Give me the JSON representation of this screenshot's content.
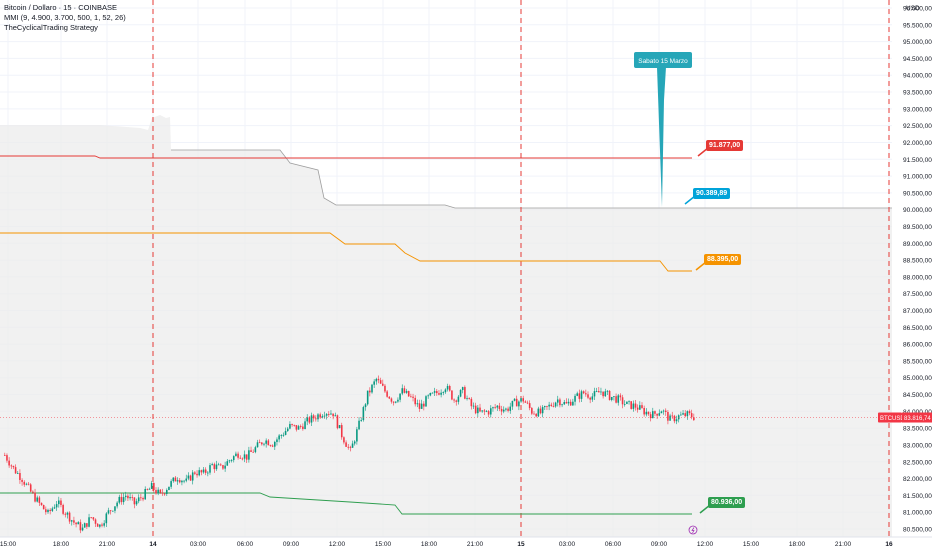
{
  "header": {
    "symbol_line": "Bitcoin / Dollaro · 15 · COINBASE",
    "indicator_line": "MMI (9, 4.900, 3.700, 500, 1, 52, 26)",
    "strategy_line": "TheCyclicalTrading Strategy"
  },
  "price_axis": {
    "unit": "USD",
    "ticker_tag": "BTCUSD",
    "last_price_tag": "83.816,74"
  },
  "callout": {
    "label": "Sabato 15 Marzo"
  },
  "levels": [
    {
      "label": "91.877,00",
      "value": 91877,
      "color": "#e53935"
    },
    {
      "label": "90.389,89",
      "value": 90389.89,
      "color": "#00a3d9"
    },
    {
      "label": "88.395,00",
      "value": 88395,
      "color": "#f59300"
    },
    {
      "label": "80.936,00",
      "value": 80936,
      "color": "#2e9e4f"
    }
  ],
  "flag_icon": "lightning-icon",
  "colors": {
    "up": "#089981",
    "down": "#f23645",
    "grid": "#f0f3fa",
    "session": "#e53935"
  },
  "chart_data": {
    "type": "candlestick",
    "ylim": [
      80250,
      96250
    ],
    "yticks": [
      "96.000,00",
      "95.500,00",
      "95.000,00",
      "94.500,00",
      "94.000,00",
      "93.500,00",
      "93.000,00",
      "92.500,00",
      "92.000,00",
      "91.500,00",
      "91.000,00",
      "90.500,00",
      "90.000,00",
      "89.500,00",
      "89.000,00",
      "88.500,00",
      "88.000,00",
      "87.500,00",
      "87.000,00",
      "86.500,00",
      "86.000,00",
      "85.500,00",
      "85.000,00",
      "84.500,00",
      "84.000,00",
      "83.500,00",
      "83.000,00",
      "82.500,00",
      "82.000,00",
      "81.500,00",
      "81.000,00",
      "80.500,00"
    ],
    "xticks": [
      "15:00",
      "18:00",
      "21:00",
      "14",
      "03:00",
      "06:00",
      "09:00",
      "12:00",
      "15:00",
      "18:00",
      "21:00",
      "15",
      "03:00",
      "06:00",
      "09:00",
      "12:00",
      "15:00",
      "18:00",
      "21:00",
      "16"
    ],
    "session_lines": [
      "14",
      "15",
      "16"
    ],
    "last_price": 83816.74,
    "close_path": [
      [
        0,
        82700
      ],
      [
        4,
        82300
      ],
      [
        8,
        82000
      ],
      [
        12,
        81600
      ],
      [
        16,
        81250
      ],
      [
        20,
        80950
      ],
      [
        24,
        81300
      ],
      [
        28,
        81000
      ],
      [
        32,
        80700
      ],
      [
        36,
        80500
      ],
      [
        40,
        80850
      ],
      [
        44,
        80600
      ],
      [
        48,
        81000
      ],
      [
        52,
        81300
      ],
      [
        56,
        81500
      ],
      [
        60,
        81250
      ],
      [
        64,
        81500
      ],
      [
        68,
        81750
      ],
      [
        72,
        81500
      ],
      [
        76,
        81800
      ],
      [
        80,
        82050
      ],
      [
        84,
        81900
      ],
      [
        88,
        82200
      ],
      [
        92,
        82150
      ],
      [
        96,
        82400
      ],
      [
        100,
        82300
      ],
      [
        104,
        82550
      ],
      [
        108,
        82750
      ],
      [
        112,
        82650
      ],
      [
        116,
        82900
      ],
      [
        120,
        83150
      ],
      [
        124,
        83050
      ],
      [
        128,
        83300
      ],
      [
        132,
        83550
      ],
      [
        136,
        83500
      ],
      [
        140,
        83700
      ],
      [
        144,
        83850
      ],
      [
        148,
        84000
      ],
      [
        152,
        83950
      ],
      [
        156,
        83300
      ],
      [
        160,
        82800
      ],
      [
        164,
        83600
      ],
      [
        168,
        84500
      ],
      [
        172,
        84950
      ],
      [
        176,
        84600
      ],
      [
        180,
        84300
      ],
      [
        184,
        84600
      ],
      [
        188,
        84400
      ],
      [
        192,
        84100
      ],
      [
        196,
        84400
      ],
      [
        200,
        84550
      ],
      [
        204,
        84750
      ],
      [
        208,
        84350
      ],
      [
        212,
        84600
      ],
      [
        216,
        84150
      ],
      [
        220,
        83950
      ],
      [
        224,
        84000
      ],
      [
        228,
        84150
      ],
      [
        232,
        84050
      ],
      [
        236,
        84250
      ],
      [
        240,
        84350
      ],
      [
        244,
        84000
      ],
      [
        248,
        83950
      ],
      [
        252,
        84150
      ],
      [
        256,
        84350
      ],
      [
        260,
        84200
      ],
      [
        264,
        84400
      ],
      [
        268,
        84550
      ],
      [
        272,
        84450
      ],
      [
        276,
        84600
      ],
      [
        280,
        84450
      ],
      [
        284,
        84350
      ],
      [
        288,
        84200
      ],
      [
        292,
        84150
      ],
      [
        296,
        84000
      ],
      [
        300,
        83900
      ],
      [
        304,
        84050
      ],
      [
        308,
        83750
      ],
      [
        312,
        83850
      ],
      [
        316,
        83900
      ],
      [
        320,
        83816.74
      ]
    ]
  }
}
